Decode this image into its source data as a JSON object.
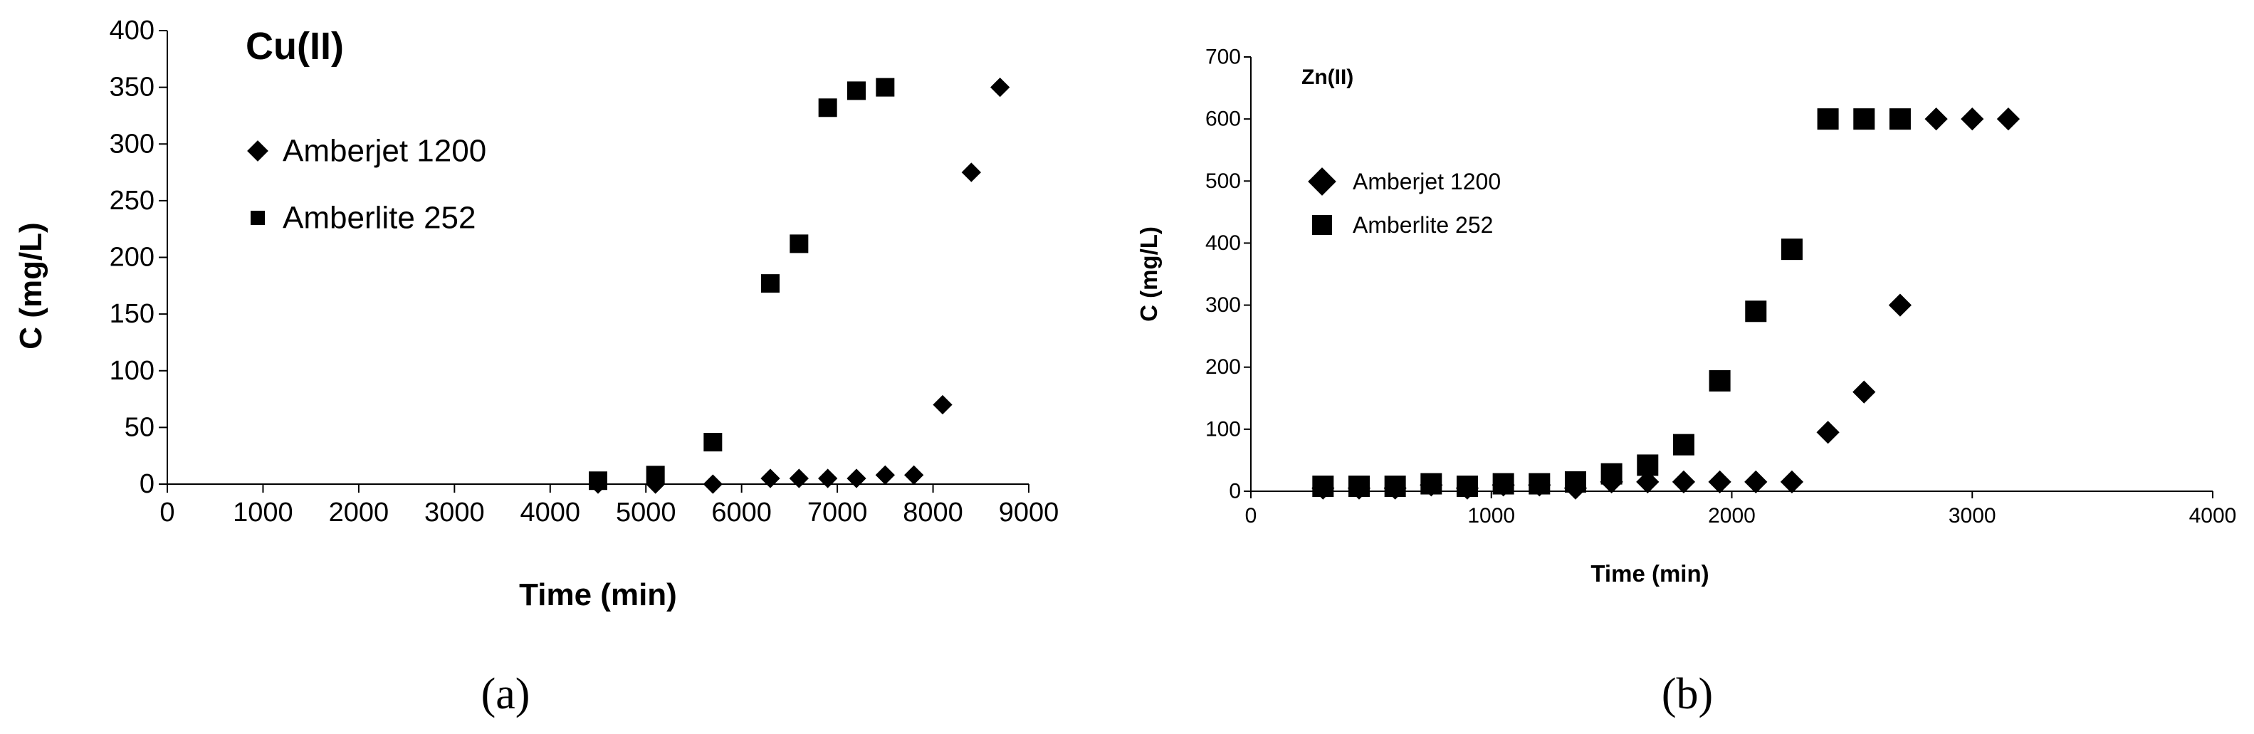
{
  "chart_data": [
    {
      "type": "scatter",
      "title": "Cu(II)",
      "xlabel": "Time (min)",
      "ylabel": "C (mg/L)",
      "xlim": [
        0,
        9000
      ],
      "ylim": [
        0,
        400
      ],
      "xticks": [
        0,
        1000,
        2000,
        3000,
        4000,
        5000,
        6000,
        7000,
        8000,
        9000
      ],
      "yticks": [
        0,
        50,
        100,
        150,
        200,
        250,
        300,
        350,
        400
      ],
      "grid": false,
      "legend_position": "top-left",
      "caption": "(a)",
      "series": [
        {
          "name": "Amberjet 1200",
          "marker": "diamond",
          "color": "#000000",
          "x": [
            4500,
            5100,
            5700,
            6300,
            6600,
            6900,
            7200,
            7500,
            7800,
            8100,
            8400,
            8700
          ],
          "y": [
            0,
            0,
            0,
            5,
            5,
            5,
            5,
            8,
            8,
            70,
            275,
            350
          ]
        },
        {
          "name": "Amberlite 252",
          "marker": "square",
          "color": "#000000",
          "x": [
            4500,
            5100,
            5700,
            6300,
            6600,
            6900,
            7200,
            7500
          ],
          "y": [
            3,
            8,
            37,
            177,
            212,
            332,
            347,
            350
          ]
        }
      ]
    },
    {
      "type": "scatter",
      "title": "Zn(II)",
      "xlabel": "Time (min)",
      "ylabel": "C (mg/L)",
      "xlim": [
        0,
        4000
      ],
      "ylim": [
        0,
        700
      ],
      "xticks": [
        0,
        1000,
        2000,
        3000,
        4000
      ],
      "yticks": [
        0,
        100,
        200,
        300,
        400,
        500,
        600,
        700
      ],
      "grid": false,
      "legend_position": "top-left",
      "caption": "(b)",
      "series": [
        {
          "name": "Amberjet 1200",
          "marker": "diamond",
          "color": "#000000",
          "x": [
            300,
            450,
            600,
            750,
            900,
            1050,
            1200,
            1350,
            1500,
            1650,
            1800,
            1950,
            2100,
            2250,
            2400,
            2550,
            2700,
            2850,
            3000,
            3150
          ],
          "y": [
            5,
            5,
            5,
            10,
            5,
            10,
            10,
            5,
            15,
            15,
            15,
            15,
            15,
            15,
            95,
            160,
            300,
            600,
            600,
            600
          ]
        },
        {
          "name": "Amberlite 252",
          "marker": "square",
          "color": "#000000",
          "x": [
            300,
            450,
            600,
            750,
            900,
            1050,
            1200,
            1350,
            1500,
            1650,
            1800,
            1950,
            2100,
            2250,
            2400,
            2550,
            2700
          ],
          "y": [
            8,
            8,
            8,
            12,
            8,
            12,
            12,
            15,
            28,
            42,
            75,
            178,
            290,
            390,
            600,
            600,
            600
          ]
        }
      ]
    }
  ]
}
